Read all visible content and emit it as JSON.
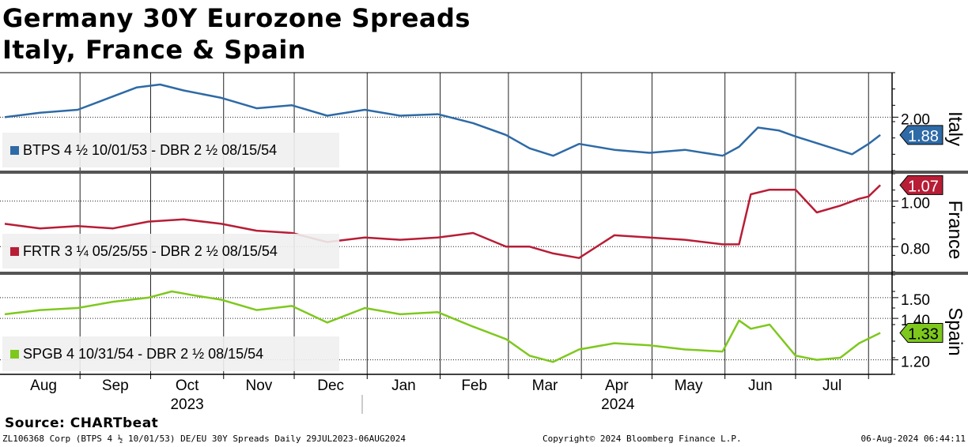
{
  "title_line1": "Germany 30Y Eurozone Spreads",
  "title_line2": "Italy, France & Spain",
  "source": "Source: CHARTbeat",
  "footer": {
    "left": "ZL106368 Corp (BTPS 4 ½ 10/01/53) DE/EU 30Y Spreads  Daily 29JUL2023-06AUG2024",
    "center": "Copyright© 2024 Bloomberg Finance L.P.",
    "right": "06-Aug-2024 06:44:11"
  },
  "chart_data": [
    {
      "type": "line",
      "panel_label": "Italy",
      "legend": "BTPS 4 ½ 10/01/53 - DBR 2 ½ 08/15/54",
      "color": "#2e6aa6",
      "last_value": "1.88",
      "ylim": [
        1.64,
        2.3
      ],
      "y_ticks": [
        "2.00"
      ],
      "x": [
        "2023-07-31",
        "2023-08-15",
        "2023-08-31",
        "2023-09-15",
        "2023-09-25",
        "2023-10-05",
        "2023-10-15",
        "2023-10-31",
        "2023-11-15",
        "2023-11-30",
        "2023-12-15",
        "2023-12-31",
        "2024-01-15",
        "2024-01-31",
        "2024-02-15",
        "2024-02-29",
        "2024-03-10",
        "2024-03-20",
        "2024-03-31",
        "2024-04-15",
        "2024-04-30",
        "2024-05-15",
        "2024-05-31",
        "2024-06-07",
        "2024-06-15",
        "2024-06-24",
        "2024-07-01",
        "2024-07-15",
        "2024-07-25",
        "2024-08-01",
        "2024-08-06"
      ],
      "values": [
        2.0,
        2.03,
        2.05,
        2.14,
        2.2,
        2.22,
        2.18,
        2.13,
        2.06,
        2.08,
        2.01,
        2.05,
        2.01,
        2.02,
        1.96,
        1.88,
        1.79,
        1.74,
        1.82,
        1.78,
        1.76,
        1.78,
        1.74,
        1.8,
        1.93,
        1.91,
        1.87,
        1.8,
        1.75,
        1.82,
        1.88
      ]
    },
    {
      "type": "line",
      "panel_label": "France",
      "legend": "FRTR 3 ¼ 05/25/55 - DBR 2 ½ 08/15/54",
      "color": "#b81d36",
      "last_value": "1.07",
      "ylim": [
        0.69,
        1.12
      ],
      "y_ticks": [
        "1.00",
        "0.80"
      ],
      "x": [
        "2023-07-31",
        "2023-08-15",
        "2023-08-31",
        "2023-09-15",
        "2023-09-30",
        "2023-10-15",
        "2023-10-31",
        "2023-11-15",
        "2023-11-30",
        "2023-12-15",
        "2023-12-31",
        "2024-01-15",
        "2024-01-31",
        "2024-02-15",
        "2024-02-29",
        "2024-03-10",
        "2024-03-20",
        "2024-03-31",
        "2024-04-15",
        "2024-04-30",
        "2024-05-15",
        "2024-05-31",
        "2024-06-07",
        "2024-06-12",
        "2024-06-20",
        "2024-07-01",
        "2024-07-10",
        "2024-07-20",
        "2024-07-28",
        "2024-08-01",
        "2024-08-06"
      ],
      "values": [
        0.9,
        0.88,
        0.89,
        0.88,
        0.91,
        0.92,
        0.9,
        0.87,
        0.86,
        0.82,
        0.84,
        0.83,
        0.84,
        0.86,
        0.8,
        0.8,
        0.77,
        0.75,
        0.85,
        0.84,
        0.83,
        0.81,
        0.81,
        1.03,
        1.05,
        1.05,
        0.95,
        0.98,
        1.01,
        1.02,
        1.07
      ]
    },
    {
      "type": "line",
      "panel_label": "Spain",
      "legend": "SPGB 4 10/31/54 - DBR 2 ½ 08/15/54",
      "color": "#7ec81e",
      "last_value": "1.33",
      "ylim": [
        1.13,
        1.61
      ],
      "y_ticks": [
        "1.50",
        "1.40",
        "1.20"
      ],
      "x": [
        "2023-07-31",
        "2023-08-15",
        "2023-08-31",
        "2023-09-15",
        "2023-09-30",
        "2023-10-10",
        "2023-10-20",
        "2023-10-31",
        "2023-11-15",
        "2023-11-30",
        "2023-12-15",
        "2023-12-31",
        "2024-01-15",
        "2024-01-31",
        "2024-02-15",
        "2024-02-29",
        "2024-03-10",
        "2024-03-20",
        "2024-03-31",
        "2024-04-15",
        "2024-04-30",
        "2024-05-15",
        "2024-05-31",
        "2024-06-07",
        "2024-06-12",
        "2024-06-20",
        "2024-07-01",
        "2024-07-10",
        "2024-07-20",
        "2024-07-28",
        "2024-08-06"
      ],
      "values": [
        1.42,
        1.44,
        1.45,
        1.48,
        1.5,
        1.53,
        1.51,
        1.49,
        1.44,
        1.46,
        1.38,
        1.45,
        1.42,
        1.43,
        1.36,
        1.3,
        1.22,
        1.19,
        1.25,
        1.28,
        1.27,
        1.25,
        1.24,
        1.39,
        1.35,
        1.37,
        1.22,
        1.2,
        1.21,
        1.28,
        1.33
      ]
    }
  ],
  "x_axis": {
    "months": [
      "Aug",
      "Sep",
      "Oct",
      "Nov",
      "Dec",
      "Jan",
      "Feb",
      "Mar",
      "Apr",
      "May",
      "Jun",
      "Jul"
    ],
    "years": [
      "2023",
      "2024"
    ],
    "start": "2023-07-29",
    "end": "2024-08-11"
  }
}
